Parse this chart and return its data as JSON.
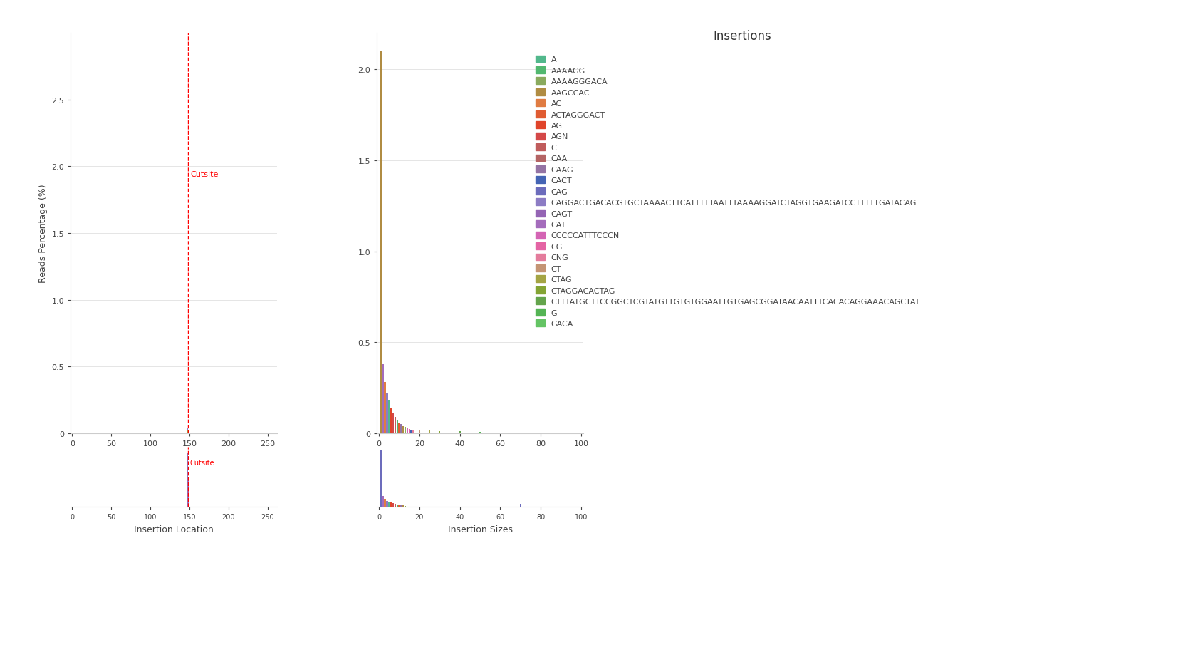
{
  "title": "Insertions",
  "ylabel": "Reads Percentage (%)",
  "xlabel_left": "Insertion Location",
  "xlabel_right": "Insertion Sizes",
  "cutsite_label": "Cutsite",
  "background_color": "#ffffff",
  "legend_entries": [
    {
      "label": "A",
      "color": "#52b88c"
    },
    {
      "label": "AAAAGG",
      "color": "#52b870"
    },
    {
      "label": "AAAAGGGACA",
      "color": "#8aaa5e"
    },
    {
      "label": "AAGCCAC",
      "color": "#b08c42"
    },
    {
      "label": "AC",
      "color": "#e07c42"
    },
    {
      "label": "ACTAGGGACT",
      "color": "#e05c32"
    },
    {
      "label": "AG",
      "color": "#e0442a"
    },
    {
      "label": "AGN",
      "color": "#d44848"
    },
    {
      "label": "C",
      "color": "#c05c5c"
    },
    {
      "label": "CAA",
      "color": "#b46464"
    },
    {
      "label": "CAAG",
      "color": "#9474a4"
    },
    {
      "label": "CACT",
      "color": "#4464b4"
    },
    {
      "label": "CAG",
      "color": "#6c6cbc"
    },
    {
      "label": "CAGGACTGACACGTGCTAAAACTTCATTTTTAATTTAAAAGGATCTAGGTGAAGATCCTTTTTGATACAG",
      "color": "#8c7cc4"
    },
    {
      "label": "CAGT",
      "color": "#9464b4"
    },
    {
      "label": "CAT",
      "color": "#a46cbc"
    },
    {
      "label": "CCCCCATTTCCCN",
      "color": "#d464b4"
    },
    {
      "label": "CG",
      "color": "#e464a4"
    },
    {
      "label": "CNG",
      "color": "#e47c9c"
    },
    {
      "label": "CT",
      "color": "#c49474"
    },
    {
      "label": "CTAG",
      "color": "#a4a444"
    },
    {
      "label": "CTAGGACACTAG",
      "color": "#84a434"
    },
    {
      "label": "CTTTATGCTTCCGGCTCGTATGTTGTGTGGAATTGTGAGCGGATAACAATTTCACACAGGAAACAGCTAT",
      "color": "#64a44c"
    },
    {
      "label": "G",
      "color": "#54b454"
    },
    {
      "label": "GACA",
      "color": "#64c464"
    }
  ],
  "left_plot": {
    "xlim": [
      -2,
      262
    ],
    "ylim": [
      0,
      3.0
    ],
    "yticks": [
      0,
      0.5,
      1.0,
      1.5,
      2.0,
      2.5
    ],
    "xticks": [
      0,
      50,
      100,
      150,
      200,
      250
    ],
    "cutsite_x": 148,
    "bars": [
      {
        "x": 148,
        "height": 0.04,
        "color": "#8c7cc4"
      },
      {
        "x": 148,
        "height": 0.025,
        "color": "#a4a444"
      },
      {
        "x": 149,
        "height": 0.02,
        "color": "#a46cbc"
      }
    ]
  },
  "right_plot": {
    "xlim": [
      -1,
      101
    ],
    "ylim": [
      0,
      2.2
    ],
    "yticks": [
      0,
      0.5,
      1.0,
      1.5,
      2.0
    ],
    "xticks": [
      0,
      20,
      40,
      60,
      80,
      100
    ],
    "bars": [
      {
        "x": 1,
        "height": 2.08,
        "color": "#6c6cbc"
      },
      {
        "x": 1,
        "height": 2.1,
        "color": "#b08c42"
      },
      {
        "x": 2,
        "height": 0.38,
        "color": "#a46cbc"
      },
      {
        "x": 3,
        "height": 0.28,
        "color": "#e07c42"
      },
      {
        "x": 4,
        "height": 0.22,
        "color": "#8c7cc4"
      },
      {
        "x": 5,
        "height": 0.18,
        "color": "#52b88c"
      },
      {
        "x": 6,
        "height": 0.14,
        "color": "#e0442a"
      },
      {
        "x": 7,
        "height": 0.11,
        "color": "#d44848"
      },
      {
        "x": 8,
        "height": 0.09,
        "color": "#c05c5c"
      },
      {
        "x": 9,
        "height": 0.07,
        "color": "#52b870"
      },
      {
        "x": 10,
        "height": 0.06,
        "color": "#e05c32"
      },
      {
        "x": 11,
        "height": 0.05,
        "color": "#9474a4"
      },
      {
        "x": 12,
        "height": 0.04,
        "color": "#b08c42"
      },
      {
        "x": 13,
        "height": 0.035,
        "color": "#8aaa5e"
      },
      {
        "x": 14,
        "height": 0.03,
        "color": "#d464b4"
      },
      {
        "x": 15,
        "height": 0.025,
        "color": "#e464a4"
      },
      {
        "x": 16,
        "height": 0.02,
        "color": "#4464b4"
      },
      {
        "x": 17,
        "height": 0.018,
        "color": "#e47c9c"
      },
      {
        "x": 20,
        "height": 0.015,
        "color": "#c49474"
      },
      {
        "x": 25,
        "height": 0.015,
        "color": "#a4a444"
      },
      {
        "x": 30,
        "height": 0.01,
        "color": "#84a434"
      },
      {
        "x": 40,
        "height": 0.01,
        "color": "#64a44c"
      },
      {
        "x": 50,
        "height": 0.008,
        "color": "#54b454"
      }
    ]
  },
  "bottom_left_plot": {
    "xlim": [
      -2,
      262
    ],
    "ylim": [
      0,
      1
    ],
    "cutsite_x": 148,
    "bars": [
      {
        "x": 148,
        "height": 0.9,
        "color": "#8c7cc4"
      },
      {
        "x": 149,
        "height": 0.45,
        "color": "#a46cbc"
      },
      {
        "x": 150,
        "height": 0.2,
        "color": "#e07c42"
      }
    ]
  },
  "bottom_right_plot": {
    "xlim": [
      -1,
      101
    ],
    "ylim": [
      0,
      1
    ],
    "bars": [
      {
        "x": 1,
        "height": 0.95,
        "color": "#6c6cbc"
      },
      {
        "x": 2,
        "height": 0.18,
        "color": "#a46cbc"
      },
      {
        "x": 3,
        "height": 0.13,
        "color": "#e07c42"
      },
      {
        "x": 4,
        "height": 0.1,
        "color": "#8c7cc4"
      },
      {
        "x": 5,
        "height": 0.08,
        "color": "#52b88c"
      },
      {
        "x": 6,
        "height": 0.07,
        "color": "#e0442a"
      },
      {
        "x": 7,
        "height": 0.06,
        "color": "#d44848"
      },
      {
        "x": 8,
        "height": 0.05,
        "color": "#c05c5c"
      },
      {
        "x": 9,
        "height": 0.04,
        "color": "#52b870"
      },
      {
        "x": 10,
        "height": 0.03,
        "color": "#e05c32"
      },
      {
        "x": 11,
        "height": 0.025,
        "color": "#9474a4"
      },
      {
        "x": 12,
        "height": 0.02,
        "color": "#b08c42"
      },
      {
        "x": 13,
        "height": 0.018,
        "color": "#8aaa5e"
      },
      {
        "x": 70,
        "height": 0.05,
        "color": "#6c6cbc"
      }
    ]
  }
}
